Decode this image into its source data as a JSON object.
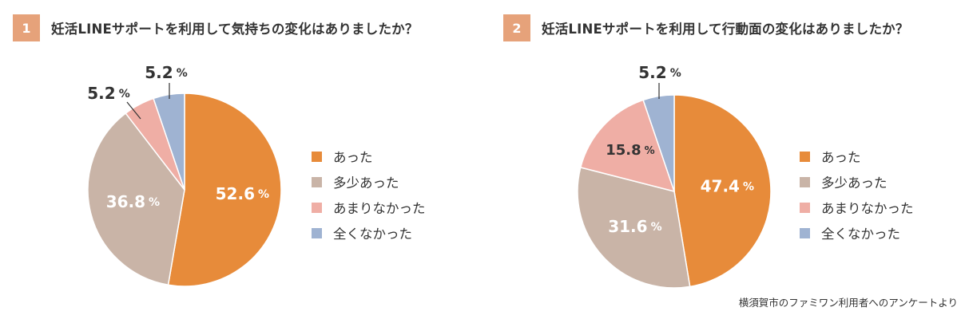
{
  "colors": {
    "atta": "#e78b3a",
    "tasho_atta": "#c9b4a7",
    "amari_nakatta": "#efaea5",
    "mattaku_nakatta": "#9fb3d2",
    "header_box": "#e6a27a"
  },
  "chart_data": [
    {
      "type": "pie",
      "number": "1",
      "title": "妊活LINEサポートを利用して気持ちの変化はありましたか？",
      "categories": [
        "あった",
        "多少あった",
        "あまりなかった",
        "全くなかった"
      ],
      "values": [
        52.6,
        36.8,
        5.2,
        5.2
      ],
      "value_labels": [
        "52.6",
        "36.8",
        "5.2",
        "5.2"
      ],
      "unit": "%",
      "legend_position": "right"
    },
    {
      "type": "pie",
      "number": "2",
      "title": "妊活LINEサポートを利用して行動面の変化はありましたか？",
      "categories": [
        "あった",
        "多少あった",
        "あまりなかった",
        "全くなかった"
      ],
      "values": [
        47.4,
        31.6,
        15.8,
        5.2
      ],
      "value_labels": [
        "47.4",
        "31.6",
        "15.8",
        "5.2"
      ],
      "unit": "%",
      "legend_position": "right"
    }
  ],
  "source": "横須賀市のファミワン利用者へのアンケートより"
}
